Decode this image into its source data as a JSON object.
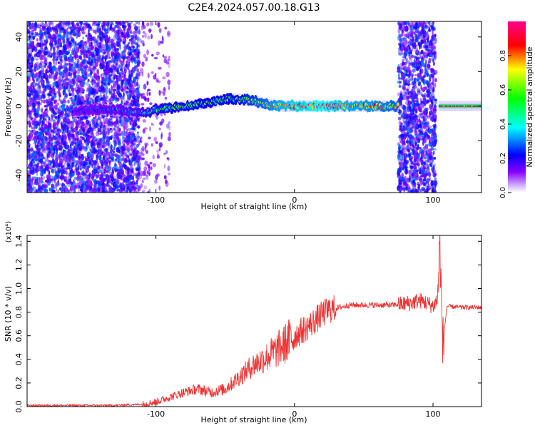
{
  "figure": {
    "title": "C2E4.2024.057.00.18.G13"
  },
  "chart_data": [
    {
      "type": "heatmap",
      "xlabel": "Height of straight line (km)",
      "ylabel": "Frequency (Hz)",
      "xlim": [
        -193,
        135
      ],
      "ylim": [
        -50,
        49
      ],
      "x_ticks": [
        -100,
        0,
        100
      ],
      "x_tick_labels": [
        "-100",
        "0",
        "100"
      ],
      "y_ticks": [
        -40,
        -20,
        0,
        20,
        40
      ],
      "y_tick_labels": [
        "-40",
        "-20",
        "0",
        "20",
        "40"
      ],
      "colorbar": {
        "label": "Normalized spectral amplitude",
        "range": [
          0,
          1
        ],
        "ticks": [
          0.0,
          0.2,
          0.4,
          0.6,
          0.8
        ],
        "tick_labels": [
          "0.0",
          "0.2",
          "0.4",
          "0.6",
          "0.8"
        ],
        "colors": [
          "#ffffff",
          "#8a00ff",
          "#0000ff",
          "#00ffff",
          "#00ff00",
          "#ffff00",
          "#ff0000",
          "#ff0090"
        ]
      },
      "ridge": {
        "x": [
          -160,
          -140,
          -120,
          -110,
          -100,
          -80,
          -60,
          -50,
          -40,
          -30,
          -20,
          -10,
          0,
          20,
          40,
          60,
          75
        ],
        "freq": [
          -3,
          -2,
          -3,
          -4,
          -2,
          0,
          2,
          4,
          4,
          3,
          1,
          0,
          0,
          0,
          0,
          0,
          0
        ],
        "amplitude": [
          0.3,
          0.35,
          0.4,
          0.45,
          0.55,
          0.6,
          0.62,
          0.62,
          0.65,
          0.7,
          0.78,
          0.85,
          0.9,
          0.95,
          0.85,
          0.8,
          0.75
        ]
      },
      "noise_regions": [
        {
          "x_from": -193,
          "x_to": -112,
          "density": "high"
        },
        {
          "x_from": -112,
          "x_to": -90,
          "density": "low"
        },
        {
          "x_from": 75,
          "x_to": 102,
          "density": "high"
        }
      ],
      "post_gap_ridge": {
        "x_from": 104,
        "x_to": 135,
        "freq": 0,
        "amplitude": 0.95
      }
    },
    {
      "type": "line",
      "xlabel": "Height of straight line (km)",
      "ylabel": "SNR (10 * v/v)",
      "yscale_label": "(x10⁴)",
      "xlim": [
        -193,
        135
      ],
      "ylim": [
        0,
        1.45
      ],
      "x_ticks": [
        -100,
        0,
        100
      ],
      "x_tick_labels": [
        "-100",
        "0",
        "100"
      ],
      "y_ticks": [
        0,
        0.2,
        0.4,
        0.6,
        0.8,
        1.0,
        1.2,
        1.4
      ],
      "y_tick_labels": [
        "0.0",
        "0.2",
        "0.4",
        "0.6",
        "0.8",
        "1.0",
        "1.2",
        "1.4"
      ],
      "color": "#ee3333",
      "series": [
        {
          "x": [
            -193,
            -160,
            -130,
            -110,
            -100,
            -90,
            -80,
            -70,
            -60,
            -50,
            -40,
            -30,
            -20,
            -10,
            0,
            10,
            20,
            25,
            40,
            60,
            70,
            80,
            85,
            90,
            95,
            100,
            103,
            105,
            107,
            110,
            120,
            135
          ],
          "y": [
            0.01,
            0.01,
            0.01,
            0.02,
            0.04,
            0.08,
            0.12,
            0.15,
            0.12,
            0.15,
            0.25,
            0.35,
            0.42,
            0.5,
            0.6,
            0.68,
            0.78,
            0.82,
            0.86,
            0.86,
            0.86,
            0.87,
            0.88,
            0.9,
            0.88,
            0.85,
            0.9,
            1.35,
            0.5,
            0.85,
            0.84,
            0.84
          ]
        }
      ]
    }
  ]
}
